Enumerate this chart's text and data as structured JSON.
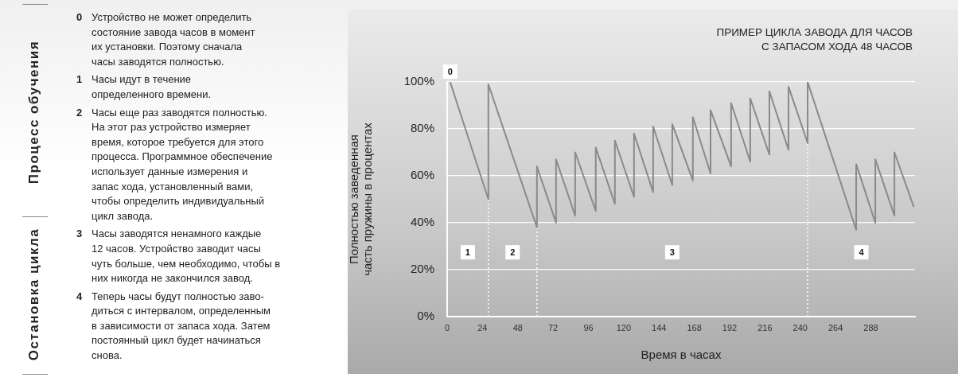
{
  "chart_data": {
    "type": "line",
    "title": "ПРИМЕР ЦИКЛА ЗАВОДА ДЛЯ ЧАСОВ\nС ЗАПАСОМ ХОДА 48 ЧАСОВ",
    "xlabel": "Время в часах",
    "ylabel": "Полностью заведенная\nчасть пружины в процентах",
    "xlim": [
      0,
      318
    ],
    "xticks": [
      0,
      24,
      48,
      72,
      96,
      120,
      144,
      168,
      192,
      216,
      240,
      264,
      288
    ],
    "ylim": [
      0,
      100
    ],
    "yticks": [
      {
        "value": 0,
        "label": "0%"
      },
      {
        "value": 20,
        "label": "20%"
      },
      {
        "value": 40,
        "label": "40%"
      },
      {
        "value": 60,
        "label": "60%"
      },
      {
        "value": 80,
        "label": "80%"
      },
      {
        "value": 100,
        "label": "100%"
      }
    ],
    "grid": "y",
    "legend": false,
    "marker": "none",
    "line_style": "solid",
    "series": [
      {
        "color": "#8a8a8a",
        "x": [
          2,
          28,
          28,
          61,
          61,
          74,
          74,
          87,
          87,
          101,
          101,
          114,
          114,
          127,
          127,
          140,
          140,
          153,
          153,
          167,
          167,
          179,
          179,
          193,
          193,
          206,
          206,
          219,
          219,
          232,
          232,
          245,
          245,
          278,
          278,
          291,
          291,
          304,
          304,
          317
        ],
        "values": [
          100,
          50,
          99,
          38,
          64,
          40,
          67,
          43,
          70,
          45,
          72,
          48,
          75,
          51,
          78,
          53,
          81,
          56,
          82,
          58,
          85,
          61,
          88,
          64,
          91,
          66,
          93,
          69,
          96,
          71,
          98,
          74,
          100,
          37,
          65,
          40,
          67,
          43,
          70,
          47
        ]
      }
    ],
    "ref_lines": [
      {
        "axis": "x",
        "value": 28,
        "color": "#ffffff",
        "line_style": "dotted"
      },
      {
        "axis": "x",
        "value": 61,
        "color": "#ffffff",
        "line_style": "dotted"
      },
      {
        "axis": "x",
        "value": 245,
        "color": "#ffffff",
        "line_style": "dotted"
      }
    ],
    "annotations": [
      {
        "text": "0",
        "x": 2,
        "y": 100
      },
      "1",
      "2",
      "3",
      "4",
      "Процесс обучения",
      "Остановка цикла",
      "0 Устройство не может определить\nсостояние завода часов в момент\nих установки. Поэтому сначала\nчасы заводятся полностью.",
      "1 Часы идут в течение\nопределенного времени.",
      "2 Часы еще раз заводятся полностью.\nНа этот раз устройство измеряет\nвремя, которое требуется для этого\nпроцесса. Программное обеспечение\nиспользует данные измерения и\nзапас хода, установленный вами,\nчтобы определить индивидуальный\nцикл завода.",
      "3 Часы заводятся ненамного каждые\n12 часов. Устройство заводит часы\nчуть больше, чем необходимо, чтобы в\nних никогда не закончился завод.",
      "4 Теперь часы будут полностью заво-\nдиться с интервалом, определенным\nв зависимости от запаса хода. Затем\nпостоянный цикл будет начинаться\nснова."
    ]
  }
}
